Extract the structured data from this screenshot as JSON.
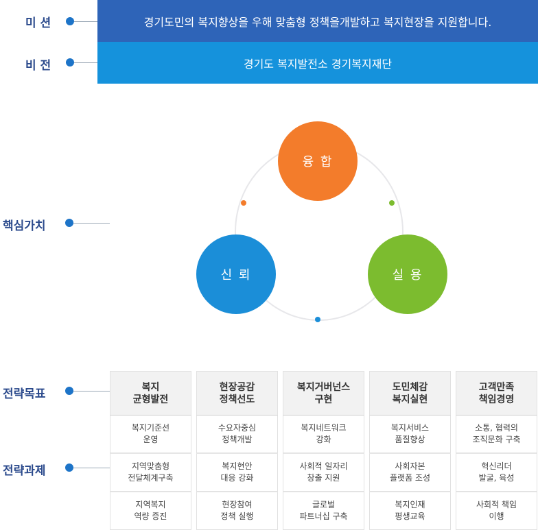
{
  "labels": {
    "mission": "미 션",
    "vision": "비 전",
    "core_values": "핵심가치",
    "strategic_goals": "전략목표",
    "strategic_tasks": "전략과제"
  },
  "mission_text": "경기도민의 복지향상을 우해 맞춤형 정책을개발하고 복지현장을 지원합니다.",
  "vision_text": "경기도 복지발전소 경기복지재단",
  "core_values": {
    "top": "융 합",
    "left": "신 뢰",
    "right": "실 용"
  },
  "colors": {
    "mission_bar": "#2e64b8",
    "vision_bar": "#1592dc",
    "value_top": "#f37c2b",
    "value_left": "#1b8ed8",
    "value_right": "#7cbc2f"
  },
  "strategy": [
    {
      "goal": "복지\n균형발전",
      "tasks": [
        "복지기준선\n운영",
        "지역맞춤형\n전달체계구축",
        "지역복지\n역량 증진"
      ]
    },
    {
      "goal": "현장공감\n정책선도",
      "tasks": [
        "수요자중심\n정책개발",
        "복지현안\n대응 강화",
        "현장참여\n정책 실행"
      ]
    },
    {
      "goal": "복지거버넌스\n구현",
      "tasks": [
        "복지네트워크\n강화",
        "사회적 일자리\n창출 지원",
        "글로벌\n파트너십 구축"
      ]
    },
    {
      "goal": "도민체감\n복지실현",
      "tasks": [
        "복지서비스\n품질향상",
        "사회자본\n플랫폼 조성",
        "복지인재\n평생교육"
      ]
    },
    {
      "goal": "고객만족\n책임경영",
      "tasks": [
        "소통, 협력의\n조직문화 구축",
        "혁신리더\n발굴, 육성",
        "사회적 책임\n이행"
      ]
    }
  ]
}
